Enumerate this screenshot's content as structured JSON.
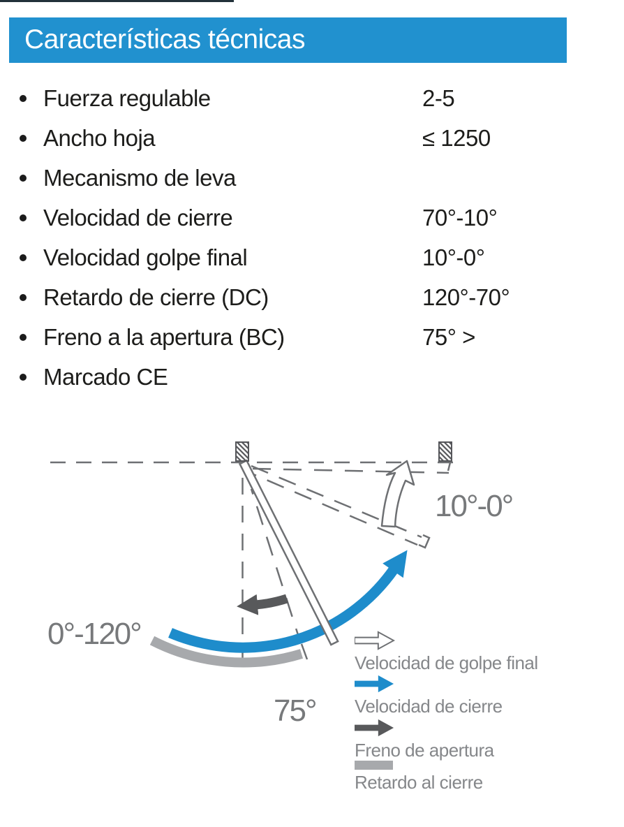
{
  "header": {
    "title": "Características técnicas"
  },
  "specs": [
    {
      "label": "Fuerza regulable",
      "value": "2-5"
    },
    {
      "label": "Ancho hoja",
      "value": "≤ 1250"
    },
    {
      "label": "Mecanismo de leva",
      "value": ""
    },
    {
      "label": "Velocidad de cierre",
      "value": "70°-10°"
    },
    {
      "label": "Velocidad golpe final",
      "value": "10°-0°"
    },
    {
      "label": "Retardo de cierre (DC)",
      "value": "120°-70°"
    },
    {
      "label": "Freno a la apertura (BC)",
      "value": "75° >"
    },
    {
      "label": "Marcado CE",
      "value": ""
    }
  ],
  "diagram": {
    "labels": {
      "opening_range": "0°-120°",
      "final_snap_range": "10°-0°",
      "backcheck_angle": "75°"
    },
    "legend": [
      {
        "icon": "outline-arrow",
        "color": "#ffffff",
        "label": "Velocidad de golpe final"
      },
      {
        "icon": "solid-arrow",
        "color": "#1e8ccb",
        "label": "Velocidad de cierre"
      },
      {
        "icon": "solid-arrow",
        "color": "#58595b",
        "label": "Freno de apertura"
      },
      {
        "icon": "bar",
        "color": "#a7a9ac",
        "label": "Retardo al cierre"
      }
    ],
    "colors": {
      "header_blue": "#2191cf",
      "closing_speed_blue": "#1e8ccb",
      "backcheck_dark_gray": "#58595b",
      "delay_light_gray": "#a7a9ac",
      "outline_gray": "#6e7073"
    }
  }
}
